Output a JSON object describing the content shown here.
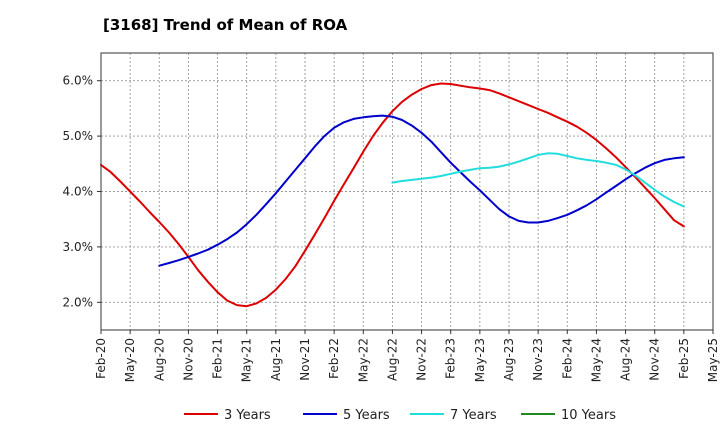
{
  "chart_data": {
    "type": "line",
    "title": "[3168]  Trend of Mean of ROA",
    "xlabel": "",
    "ylabel": "",
    "x_ticks": [
      "Feb-20",
      "May-20",
      "Aug-20",
      "Nov-20",
      "Feb-21",
      "May-21",
      "Aug-21",
      "Nov-21",
      "Feb-22",
      "May-22",
      "Aug-22",
      "Nov-22",
      "Feb-23",
      "May-23",
      "Aug-23",
      "Nov-23",
      "Feb-24",
      "May-24",
      "Aug-24",
      "Nov-24",
      "Feb-25",
      "May-25"
    ],
    "y_ticks": [
      "2.0%",
      "3.0%",
      "4.0%",
      "5.0%",
      "6.0%"
    ],
    "y_tick_values": [
      2.0,
      3.0,
      4.0,
      5.0,
      6.0
    ],
    "ylim": [
      1.5,
      6.5
    ],
    "grid": true,
    "legend_position": "bottom",
    "series": [
      {
        "name": "3 Years",
        "color": "#dd0000",
        "x": [
          "Feb-20",
          "Mar-20",
          "Apr-20",
          "May-20",
          "Jun-20",
          "Jul-20",
          "Aug-20",
          "Sep-20",
          "Oct-20",
          "Nov-20",
          "Dec-20",
          "Jan-21",
          "Feb-21",
          "Mar-21",
          "Apr-21",
          "May-21",
          "Jun-21",
          "Jul-21",
          "Aug-21",
          "Sep-21",
          "Oct-21",
          "Nov-21",
          "Dec-21",
          "Jan-22",
          "Feb-22",
          "Mar-22",
          "Apr-22",
          "May-22",
          "Jun-22",
          "Jul-22",
          "Aug-22",
          "Sep-22",
          "Oct-22",
          "Nov-22",
          "Dec-22",
          "Jan-23",
          "Feb-23",
          "Mar-23",
          "Apr-23",
          "May-23",
          "Jun-23",
          "Jul-23",
          "Aug-23",
          "Sep-23",
          "Oct-23",
          "Nov-23",
          "Dec-23",
          "Jan-24",
          "Feb-24",
          "Mar-24",
          "Apr-24",
          "May-24",
          "Jun-24",
          "Jul-24",
          "Aug-24",
          "Sep-24",
          "Oct-24",
          "Nov-24",
          "Dec-24",
          "Jan-25",
          "Feb-25"
        ],
        "values": [
          4.48,
          4.35,
          4.18,
          4.0,
          3.82,
          3.63,
          3.45,
          3.26,
          3.05,
          2.82,
          2.58,
          2.37,
          2.18,
          2.03,
          1.95,
          1.93,
          1.98,
          2.08,
          2.23,
          2.42,
          2.65,
          2.93,
          3.22,
          3.52,
          3.83,
          4.13,
          4.42,
          4.72,
          5.0,
          5.24,
          5.45,
          5.62,
          5.75,
          5.85,
          5.92,
          5.95,
          5.94,
          5.91,
          5.88,
          5.86,
          5.83,
          5.77,
          5.7,
          5.63,
          5.56,
          5.49,
          5.42,
          5.34,
          5.26,
          5.17,
          5.06,
          4.93,
          4.78,
          4.62,
          4.44,
          4.26,
          4.07,
          3.88,
          3.68,
          3.48,
          3.37
        ]
      },
      {
        "name": "5 Years",
        "color": "#0000cc",
        "x": [
          "Aug-20",
          "Sep-20",
          "Oct-20",
          "Nov-20",
          "Dec-20",
          "Jan-21",
          "Feb-21",
          "Mar-21",
          "Apr-21",
          "May-21",
          "Jun-21",
          "Jul-21",
          "Aug-21",
          "Sep-21",
          "Oct-21",
          "Nov-21",
          "Dec-21",
          "Jan-22",
          "Feb-22",
          "Mar-22",
          "Apr-22",
          "May-22",
          "Jun-22",
          "Jul-22",
          "Aug-22",
          "Sep-22",
          "Oct-22",
          "Nov-22",
          "Dec-22",
          "Jan-23",
          "Feb-23",
          "Mar-23",
          "Apr-23",
          "May-23",
          "Jun-23",
          "Jul-23",
          "Aug-23",
          "Sep-23",
          "Oct-23",
          "Nov-23",
          "Dec-23",
          "Jan-24",
          "Feb-24",
          "Mar-24",
          "Apr-24",
          "May-24",
          "Jun-24",
          "Jul-24",
          "Aug-24",
          "Sep-24",
          "Oct-24",
          "Nov-24",
          "Dec-24",
          "Jan-25",
          "Feb-25"
        ],
        "values": [
          2.66,
          2.71,
          2.76,
          2.82,
          2.88,
          2.95,
          3.04,
          3.14,
          3.26,
          3.41,
          3.58,
          3.77,
          3.97,
          4.18,
          4.39,
          4.6,
          4.81,
          5.0,
          5.15,
          5.25,
          5.31,
          5.34,
          5.36,
          5.37,
          5.35,
          5.29,
          5.19,
          5.06,
          4.9,
          4.71,
          4.52,
          4.35,
          4.18,
          4.02,
          3.85,
          3.68,
          3.55,
          3.47,
          3.44,
          3.44,
          3.47,
          3.52,
          3.58,
          3.66,
          3.75,
          3.86,
          3.98,
          4.1,
          4.22,
          4.33,
          4.43,
          4.51,
          4.57,
          4.6,
          4.62
        ]
      },
      {
        "name": "7 Years",
        "color": "#22dddd",
        "x": [
          "Aug-22",
          "Sep-22",
          "Oct-22",
          "Nov-22",
          "Dec-22",
          "Jan-23",
          "Feb-23",
          "Mar-23",
          "Apr-23",
          "May-23",
          "Jun-23",
          "Jul-23",
          "Aug-23",
          "Sep-23",
          "Oct-23",
          "Nov-23",
          "Dec-23",
          "Jan-24",
          "Feb-24",
          "Mar-24",
          "Apr-24",
          "May-24",
          "Jun-24",
          "Jul-24",
          "Aug-24",
          "Sep-24",
          "Oct-24",
          "Nov-24",
          "Dec-24",
          "Jan-25",
          "Feb-25"
        ],
        "values": [
          4.16,
          4.19,
          4.21,
          4.23,
          4.25,
          4.28,
          4.32,
          4.36,
          4.39,
          4.42,
          4.43,
          4.45,
          4.49,
          4.54,
          4.6,
          4.66,
          4.69,
          4.68,
          4.64,
          4.6,
          4.57,
          4.55,
          4.52,
          4.48,
          4.4,
          4.29,
          4.16,
          4.03,
          3.91,
          3.81,
          3.73
        ]
      },
      {
        "name": "10 Years",
        "color": "#228822",
        "x": [],
        "values": []
      }
    ]
  }
}
